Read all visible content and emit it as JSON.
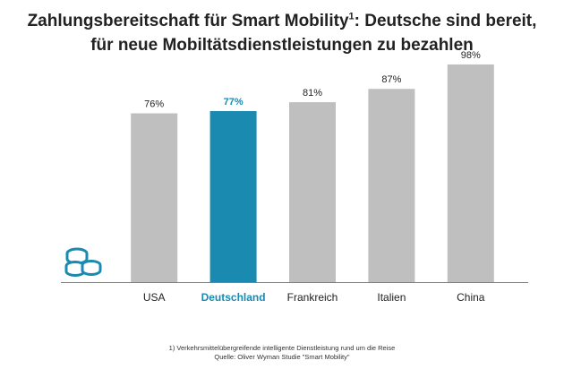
{
  "title": {
    "line1_before": "Zahlungsbereitschaft für Smart Mobility",
    "line1_sup": "1",
    "line1_after": ": Deutsche sind bereit,",
    "line2": "für neue Mobiltätsdienstleistungen zu bezahlen"
  },
  "footnote": {
    "line1": "1) Verkehrsmittelübergreifende  intelligente Dienstleistung rund um die Reise",
    "line2": "Quelle: Oliver Wyman Studie \"Smart Mobility\""
  },
  "icon": "coins-icon",
  "colors": {
    "bar": "#bfbfbf",
    "highlight": "#1a8ab0",
    "label": "#222222",
    "axis": "#7f7f7f"
  },
  "chart_data": {
    "type": "bar",
    "categories": [
      "USA",
      "Deutschland",
      "Frankreich",
      "Italien",
      "China"
    ],
    "values": [
      76,
      77,
      81,
      87,
      98
    ],
    "value_labels": [
      "76%",
      "77%",
      "81%",
      "87%",
      "98%"
    ],
    "highlight": "Deutschland",
    "ylim": [
      0,
      100
    ],
    "grid": false,
    "legend": "none"
  }
}
